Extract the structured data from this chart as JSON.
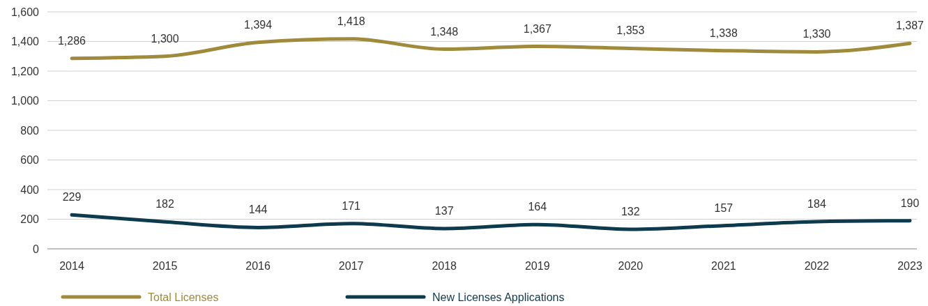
{
  "chart_data": {
    "type": "line",
    "categories": [
      "2014",
      "2015",
      "2016",
      "2017",
      "2018",
      "2019",
      "2020",
      "2021",
      "2022",
      "2023"
    ],
    "series": [
      {
        "name": "Total Licenses",
        "color": "#a08a3c",
        "values": [
          1286,
          1300,
          1394,
          1418,
          1348,
          1367,
          1353,
          1338,
          1330,
          1387
        ],
        "value_labels": [
          "1,286",
          "1,300",
          "1,394",
          "1,418",
          "1,348",
          "1,367",
          "1,353",
          "1,338",
          "1,330",
          "1,387"
        ]
      },
      {
        "name": "New Licenses Applications",
        "color": "#0e3a4e",
        "values": [
          229,
          182,
          144,
          171,
          137,
          164,
          132,
          157,
          184,
          190
        ],
        "value_labels": [
          "229",
          "182",
          "144",
          "171",
          "137",
          "164",
          "132",
          "157",
          "184",
          "190"
        ]
      }
    ],
    "ylim": [
      0,
      1600
    ],
    "yticks": [
      {
        "value": 0,
        "label": "0"
      },
      {
        "value": 200,
        "label": "200"
      },
      {
        "value": 400,
        "label": "400"
      },
      {
        "value": 600,
        "label": "600"
      },
      {
        "value": 800,
        "label": "800"
      },
      {
        "value": 1000,
        "label": "1,000"
      },
      {
        "value": 1200,
        "label": "1,200"
      },
      {
        "value": 1400,
        "label": "1,400"
      },
      {
        "value": 1600,
        "label": "1,600"
      }
    ],
    "grid": "y",
    "legend": "bottom",
    "marker": "none",
    "line_style": "solid"
  }
}
